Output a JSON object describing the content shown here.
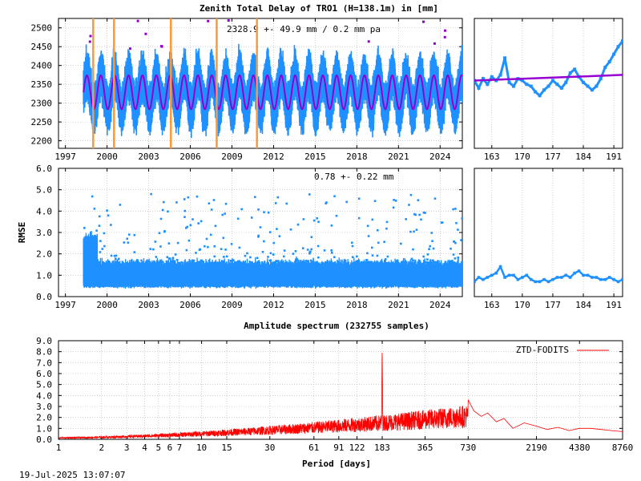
{
  "chart_data": [
    {
      "type": "line",
      "panel": "ztd-main",
      "title": "Zenith Total Delay of TRO1 (H=138.1m) in [mm]",
      "annotation": "2328.9 +-  49.9 mm /  0.2 mm pa",
      "xlim": [
        1996.5,
        2025.6
      ],
      "ylim": [
        2180,
        2525
      ],
      "xticks": [
        1997,
        2000,
        2003,
        2006,
        2009,
        2012,
        2015,
        2018,
        2021,
        2024
      ],
      "yticks": [
        2200,
        2250,
        2300,
        2350,
        2400,
        2450,
        2500
      ],
      "grid": true,
      "start": 1998.3,
      "end": 2025.6,
      "mean": 2328.9,
      "std": 49.9,
      "trend_per_year": 0.2,
      "fit_amplitude": 45,
      "annual_envelope": 110,
      "event_lines": [
        1999.0,
        2000.5,
        2004.6,
        2007.9,
        2010.8
      ],
      "colors": {
        "data": "#1e90ff",
        "fit": "#9400d3",
        "events": "#ff9933"
      }
    },
    {
      "type": "line",
      "panel": "ztd-recent",
      "xlim": [
        159,
        193
      ],
      "ylim": [
        2180,
        2525
      ],
      "xticks": [
        163,
        170,
        177,
        184,
        191
      ],
      "grid": true,
      "series": [
        {
          "x": [
            159,
            160,
            161,
            162,
            163,
            164,
            165,
            166,
            167,
            168,
            169,
            170,
            171,
            172,
            173,
            174,
            175,
            176,
            177,
            178,
            179,
            180,
            181,
            182,
            183,
            184,
            185,
            186,
            187,
            188,
            189,
            190,
            191,
            192,
            193
          ],
          "values": [
            2360,
            2340,
            2365,
            2350,
            2370,
            2360,
            2375,
            2420,
            2355,
            2345,
            2365,
            2360,
            2350,
            2345,
            2330,
            2320,
            2335,
            2345,
            2360,
            2350,
            2340,
            2355,
            2380,
            2390,
            2370,
            2355,
            2345,
            2335,
            2345,
            2365,
            2395,
            2410,
            2430,
            2450,
            2465
          ]
        }
      ],
      "trend": [
        [
          159,
          2360
        ],
        [
          193,
          2375
        ]
      ],
      "colors": {
        "data": "#1e90ff",
        "fit": "#9400d3"
      }
    },
    {
      "type": "scatter",
      "panel": "rmse-main",
      "ylabel": "RMSE",
      "annotation": "0.78 +-  0.22 mm",
      "xlim": [
        1996.5,
        2025.6
      ],
      "ylim": [
        0,
        6
      ],
      "xticks": [
        1997,
        2000,
        2003,
        2006,
        2009,
        2012,
        2015,
        2018,
        2021,
        2024
      ],
      "yticks": [
        0,
        1,
        2,
        3,
        4,
        5,
        6
      ],
      "ytick_labels": [
        "0.0",
        "1.0",
        "2.0",
        "3.0",
        "4.0",
        "5.0",
        "6.0"
      ],
      "grid": true,
      "start": 1998.3,
      "end": 2025.6,
      "mean": 0.78,
      "std": 0.22,
      "colors": {
        "data": "#1e90ff"
      }
    },
    {
      "type": "line",
      "panel": "rmse-recent",
      "xlim": [
        159,
        193
      ],
      "ylim": [
        0,
        6
      ],
      "xticks": [
        163,
        170,
        177,
        184,
        191
      ],
      "grid": true,
      "series": [
        {
          "x": [
            159,
            160,
            161,
            162,
            163,
            164,
            165,
            166,
            167,
            168,
            169,
            170,
            171,
            172,
            173,
            174,
            175,
            176,
            177,
            178,
            179,
            180,
            181,
            182,
            183,
            184,
            185,
            186,
            187,
            188,
            189,
            190,
            191,
            192,
            193
          ],
          "values": [
            0.7,
            0.9,
            0.8,
            0.9,
            1.0,
            1.1,
            1.4,
            0.9,
            1.0,
            1.0,
            0.8,
            0.9,
            1.0,
            0.8,
            0.7,
            0.7,
            0.8,
            0.7,
            0.8,
            0.9,
            0.9,
            1.0,
            0.9,
            1.1,
            1.2,
            1.0,
            1.0,
            0.9,
            0.9,
            0.8,
            0.8,
            0.9,
            0.8,
            0.7,
            0.8
          ]
        }
      ],
      "colors": {
        "data": "#1e90ff"
      }
    },
    {
      "type": "line",
      "panel": "spectrum",
      "title": "Amplitude spectrum (232755 samples)",
      "xlabel": "Period [days]",
      "x_scale": "log",
      "xlim": [
        1,
        8760
      ],
      "ylim": [
        0,
        9
      ],
      "xticks": [
        1,
        2,
        3,
        4,
        5,
        6,
        7,
        10,
        15,
        30,
        61,
        91,
        122,
        183,
        365,
        730,
        2190,
        4380,
        8760
      ],
      "yticks": [
        0,
        1,
        2,
        3,
        4,
        5,
        6,
        7,
        8,
        9
      ],
      "ytick_labels": [
        "0.0",
        "1.0",
        "2.0",
        "3.0",
        "4.0",
        "5.0",
        "6.0",
        "7.0",
        "8.0",
        "9.0"
      ],
      "grid": true,
      "legend": "top-right",
      "series": [
        {
          "name": "ZTD-FODITS",
          "color": "#ff0000"
        }
      ],
      "peaks": [
        [
          183,
          8.6
        ],
        [
          365,
          2.5
        ],
        [
          550,
          2.4
        ],
        [
          730,
          3.6
        ],
        [
          1000,
          2.1
        ],
        [
          1300,
          1.9
        ]
      ],
      "long_period": [
        [
          730,
          3.6
        ],
        [
          800,
          2.6
        ],
        [
          900,
          2.1
        ],
        [
          1000,
          2.4
        ],
        [
          1150,
          1.6
        ],
        [
          1300,
          1.9
        ],
        [
          1500,
          1.0
        ],
        [
          1800,
          1.5
        ],
        [
          2190,
          1.2
        ],
        [
          2600,
          0.9
        ],
        [
          3100,
          1.1
        ],
        [
          3700,
          0.8
        ],
        [
          4380,
          1.0
        ],
        [
          5200,
          1.0
        ],
        [
          6200,
          0.9
        ],
        [
          7300,
          0.8
        ],
        [
          8760,
          0.7
        ]
      ]
    }
  ],
  "footer": {
    "timestamp": "19-Jul-2025 13:07:07"
  }
}
